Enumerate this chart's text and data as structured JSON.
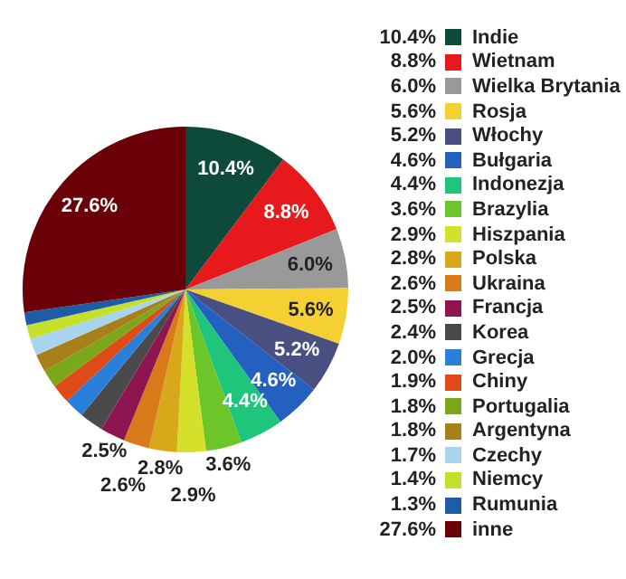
{
  "chart_data": {
    "type": "pie",
    "categories": [
      "Indie",
      "Wietnam",
      "Wielka Brytania",
      "Rosja",
      "Włochy",
      "Bułgaria",
      "Indonezja",
      "Brazylia",
      "Hiszpania",
      "Polska",
      "Ukraina",
      "Francja",
      "Korea",
      "Grecja",
      "Chiny",
      "Portugalia",
      "Argentyna",
      "Czechy",
      "Niemcy",
      "Rumunia",
      "inne"
    ],
    "values": [
      10.4,
      8.8,
      6.0,
      5.6,
      5.2,
      4.6,
      4.4,
      3.6,
      2.9,
      2.8,
      2.6,
      2.5,
      2.4,
      2.0,
      1.9,
      1.8,
      1.8,
      1.7,
      1.4,
      1.3,
      27.6
    ],
    "colors": [
      "#0d4a3a",
      "#e8191c",
      "#999999",
      "#f5d033",
      "#4a4f82",
      "#2460c0",
      "#1ec57a",
      "#6cc62a",
      "#d4e02a",
      "#d9a81a",
      "#d97a1a",
      "#8e1550",
      "#4a4a4a",
      "#2a80d8",
      "#e04a18",
      "#7aa81a",
      "#a8801a",
      "#a8d4ee",
      "#c4e02a",
      "#1e5ca8",
      "#6a0008"
    ],
    "value_labels": [
      "10.4%",
      "8.8%",
      "6.0%",
      "5.6%",
      "5.2%",
      "4.6%",
      "4.4%",
      "3.6%",
      "2.9%",
      "2.8%",
      "2.6%",
      "2.5%",
      "2.4%",
      "2.0%",
      "1.9%",
      "1.8%",
      "1.8%",
      "1.7%",
      "1.4%",
      "1.3%",
      "27.6%"
    ],
    "legend": "right"
  }
}
